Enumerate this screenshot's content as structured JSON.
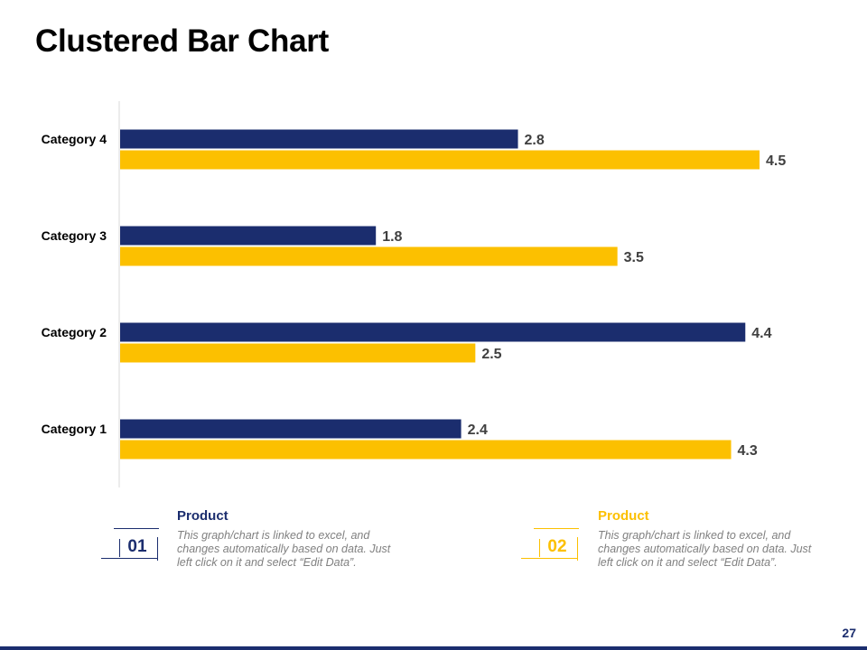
{
  "slide": {
    "title": "Clustered Bar Chart",
    "page_number": "27"
  },
  "colors": {
    "series1": "#1b2d6e",
    "series2": "#fcc000",
    "axis": "#d9d9d9",
    "footer_bar": "#1b2d6e"
  },
  "chart_data": {
    "type": "bar",
    "orientation": "horizontal",
    "title": "",
    "xlabel": "",
    "ylabel": "",
    "categories": [
      "Category 1",
      "Category 2",
      "Category 3",
      "Category 4"
    ],
    "series": [
      {
        "values": [
          2.4,
          4.4,
          1.8,
          2.8
        ],
        "color": "#1b2d6e"
      },
      {
        "values": [
          4.3,
          2.5,
          3.5,
          4.5
        ],
        "color": "#fcc000"
      }
    ],
    "xlim": [
      0,
      5
    ],
    "data_labels": true,
    "grid": false,
    "legend": "none"
  },
  "legend": [
    {
      "number": "01",
      "heading": "Product",
      "description": "This graph/chart is linked to excel, and changes automatically based on data. Just left click on it and select “Edit Data”.",
      "color": "#1b2d6e"
    },
    {
      "number": "02",
      "heading": "Product",
      "description": "This graph/chart is linked to excel, and changes automatically based on data. Just left click on it and select “Edit Data”.",
      "color": "#fcc000"
    }
  ]
}
